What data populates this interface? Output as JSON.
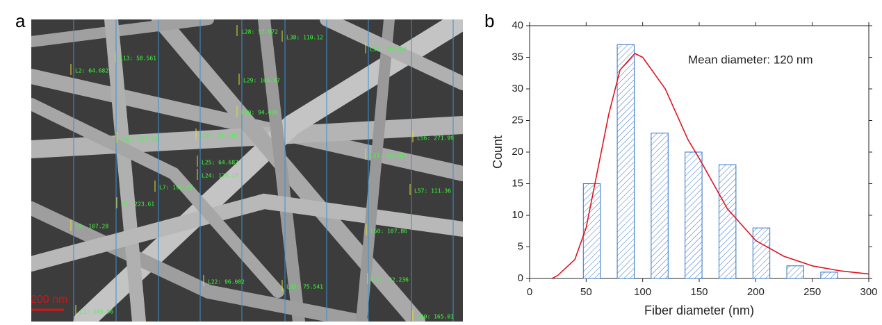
{
  "panel_labels": [
    "a",
    "b"
  ],
  "sem_image": {
    "scale_bar": "200 nm",
    "measurements": [
      "L2: 64.682",
      "L13: 58.561",
      "L28: 57.972",
      "L38: 110.12",
      "L54: 76.354",
      "L29: 166.67",
      "L30: 94.426",
      "L26: 78.130",
      "L56: 271.99",
      "L51: 99.381",
      "L12: 123.28",
      "L25: 64.682",
      "L24: 124.17",
      "L57: 111.36",
      "L7: 190.48",
      "L8: 223.61",
      "L9: 107.28",
      "L50: 107.86",
      "L22: 96.082",
      "L33: 75.541",
      "L46: 82.236",
      "L60: 165.01",
      "L1: 145.96"
    ]
  },
  "chart_data": {
    "type": "bar",
    "x_label": "Fiber diameter (nm)",
    "y_label": "Count",
    "annotation": "Mean diameter: 120 nm",
    "x": [
      55,
      85,
      115,
      145,
      175,
      205,
      235,
      265
    ],
    "values": [
      15,
      37,
      23,
      20,
      18,
      8,
      2,
      1
    ],
    "color": "#2e6fc7",
    "fit": {
      "color": "#e0141e",
      "x": [
        20,
        25,
        40,
        50,
        60,
        70,
        80,
        93,
        100,
        120,
        140,
        150,
        175,
        200,
        225,
        250,
        275,
        300
      ],
      "y": [
        0,
        0.5,
        3,
        8,
        17,
        26,
        33,
        35.6,
        35,
        30,
        22,
        19,
        11,
        6,
        3.5,
        2,
        1.2,
        0.7
      ]
    },
    "xlim": [
      0,
      300
    ],
    "xticks": [
      0,
      50,
      100,
      150,
      200,
      250,
      300
    ],
    "ylim": [
      0,
      40
    ],
    "yticks": [
      0,
      5,
      10,
      15,
      20,
      25,
      30,
      35,
      40
    ]
  }
}
